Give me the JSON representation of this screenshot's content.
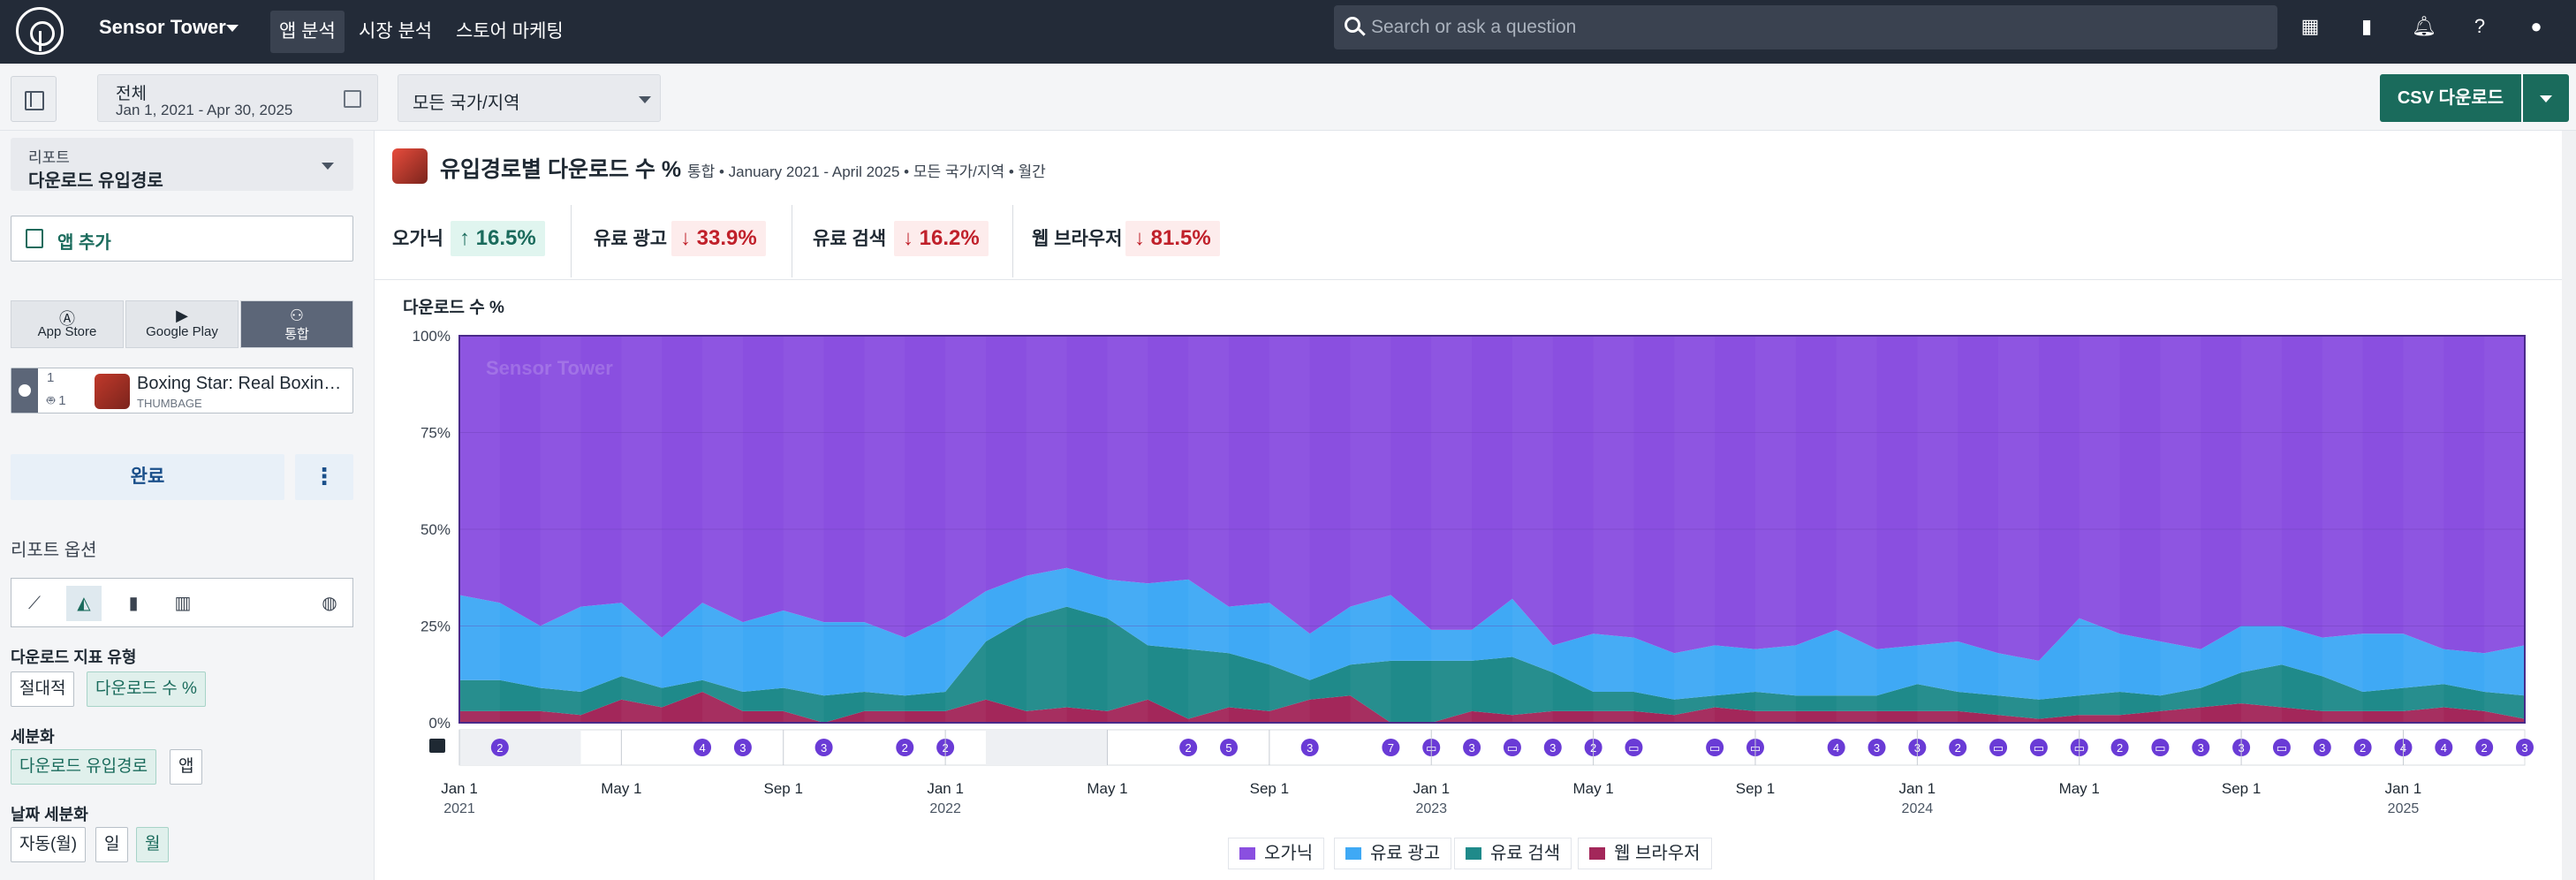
{
  "topbar": {
    "brand": "Sensor Tower",
    "nav": [
      "앱 분석",
      "시장 분석",
      "스토어 마케팅"
    ],
    "search_placeholder": "Search or ask a question"
  },
  "subbar": {
    "date_label": "전체",
    "date_range": "Jan 1, 2021 - Apr 30, 2025",
    "region": "모든 국가/지역",
    "csv_label": "CSV 다운로드"
  },
  "sidebar": {
    "report_label": "리포트",
    "report_value": "다운로드 유입경로",
    "add_app": "앱 추가",
    "platforms": [
      "App Store",
      "Google Play",
      "통합"
    ],
    "app": {
      "name": "Boxing Star: Real Boxing Fight",
      "publisher": "THUMBAGE",
      "ios_count": "1",
      "android_count": "1"
    },
    "done_label": "완료",
    "options_title": "리포트 옵션",
    "metric_type_label": "다운로드 지표 유형",
    "metric_types": [
      "절대적",
      "다운로드 수 %"
    ],
    "segment_label": "세분화",
    "segments": [
      "다운로드 유입경로",
      "앱"
    ],
    "date_segment_label": "날짜 세분화",
    "date_segments": [
      "자동(월)",
      "일",
      "월"
    ]
  },
  "main": {
    "title": "유입경로별 다운로드 수 %",
    "subtitle": "통합 • January 2021 - April 2025 • 모든 국가/지역 • 월간",
    "kpis": [
      {
        "name": "오가닉",
        "value": "↑ 16.5%",
        "dir": "up"
      },
      {
        "name": "유료 광고",
        "value": "↓ 33.9%",
        "dir": "down"
      },
      {
        "name": "유료 검색",
        "value": "↓ 16.2%",
        "dir": "down"
      },
      {
        "name": "웹 브라우저",
        "value": "↓ 81.5%",
        "dir": "down"
      }
    ]
  },
  "chart_data": {
    "type": "area",
    "stacked": true,
    "ylabel": "다운로드 수 %",
    "watermark": "Sensor Tower",
    "ylim": [
      0,
      100
    ],
    "yticks": [
      "0%",
      "25%",
      "50%",
      "75%",
      "100%"
    ],
    "x_ticks": [
      {
        "label": "Jan 1",
        "year": "2021",
        "i": 0
      },
      {
        "label": "May 1",
        "year": "",
        "i": 4
      },
      {
        "label": "Sep 1",
        "year": "",
        "i": 8
      },
      {
        "label": "Jan 1",
        "year": "2022",
        "i": 12
      },
      {
        "label": "May 1",
        "year": "",
        "i": 16
      },
      {
        "label": "Sep 1",
        "year": "",
        "i": 20
      },
      {
        "label": "Jan 1",
        "year": "2023",
        "i": 24
      },
      {
        "label": "May 1",
        "year": "",
        "i": 28
      },
      {
        "label": "Sep 1",
        "year": "",
        "i": 32
      },
      {
        "label": "Jan 1",
        "year": "2024",
        "i": 36
      },
      {
        "label": "May 1",
        "year": "",
        "i": 40
      },
      {
        "label": "Sep 1",
        "year": "",
        "i": 44
      },
      {
        "label": "Jan 1",
        "year": "2025",
        "i": 48
      }
    ],
    "x": [
      "2021-01",
      "2021-02",
      "2021-03",
      "2021-04",
      "2021-05",
      "2021-06",
      "2021-07",
      "2021-08",
      "2021-09",
      "2021-10",
      "2021-11",
      "2021-12",
      "2022-01",
      "2022-02",
      "2022-03",
      "2022-04",
      "2022-05",
      "2022-06",
      "2022-07",
      "2022-08",
      "2022-09",
      "2022-10",
      "2022-11",
      "2022-12",
      "2023-01",
      "2023-02",
      "2023-03",
      "2023-04",
      "2023-05",
      "2023-06",
      "2023-07",
      "2023-08",
      "2023-09",
      "2023-10",
      "2023-11",
      "2023-12",
      "2024-01",
      "2024-02",
      "2024-03",
      "2024-04",
      "2024-05",
      "2024-06",
      "2024-07",
      "2024-08",
      "2024-09",
      "2024-10",
      "2024-11",
      "2024-12",
      "2025-01",
      "2025-02",
      "2025-03",
      "2025-04"
    ],
    "series": [
      {
        "name": "웹 브라우저",
        "color": "#a3275a",
        "values": [
          3,
          3,
          3,
          2,
          6,
          4,
          8,
          3,
          3,
          0,
          3,
          3,
          3,
          6,
          3,
          4,
          3,
          6,
          1,
          4,
          3,
          6,
          7,
          0,
          0,
          3,
          2,
          3,
          3,
          3,
          2,
          4,
          3,
          3,
          3,
          3,
          3,
          3,
          2,
          1,
          2,
          2,
          3,
          4,
          5,
          4,
          3,
          3,
          3,
          4,
          3,
          1
        ]
      },
      {
        "name": "유료 검색",
        "color": "#1f8a8a",
        "values": [
          8,
          8,
          6,
          6,
          6,
          5,
          3,
          5,
          6,
          7,
          5,
          4,
          5,
          15,
          24,
          26,
          24,
          14,
          18,
          14,
          12,
          5,
          8,
          16,
          16,
          13,
          15,
          10,
          5,
          5,
          4,
          3,
          5,
          4,
          4,
          4,
          7,
          5,
          5,
          5,
          5,
          6,
          4,
          5,
          8,
          11,
          9,
          5,
          6,
          6,
          5,
          6
        ]
      },
      {
        "name": "유료 광고",
        "color": "#3fa9f5",
        "values": [
          22,
          20,
          16,
          22,
          19,
          13,
          20,
          18,
          20,
          19,
          18,
          15,
          19,
          13,
          11,
          10,
          10,
          16,
          18,
          12,
          16,
          12,
          15,
          17,
          8,
          8,
          15,
          7,
          15,
          14,
          12,
          13,
          11,
          13,
          17,
          12,
          10,
          13,
          11,
          10,
          20,
          15,
          14,
          10,
          12,
          10,
          10,
          15,
          14,
          9,
          10,
          13
        ]
      },
      {
        "name": "오가닉",
        "color": "#8a4fe0",
        "values": [
          67,
          69,
          75,
          70,
          69,
          78,
          69,
          74,
          71,
          74,
          74,
          78,
          73,
          66,
          62,
          60,
          63,
          64,
          63,
          70,
          69,
          77,
          70,
          67,
          76,
          76,
          68,
          80,
          77,
          78,
          82,
          80,
          81,
          80,
          76,
          81,
          80,
          79,
          82,
          84,
          73,
          77,
          79,
          81,
          75,
          75,
          78,
          77,
          77,
          81,
          82,
          80
        ]
      }
    ],
    "legend": [
      "오가닉",
      "유료 광고",
      "유료 검색",
      "웹 브라우저"
    ],
    "legend_position": "bottom-center",
    "events": [
      {
        "i": 1,
        "label": "2"
      },
      {
        "i": 6,
        "label": "4"
      },
      {
        "i": 7,
        "label": "3"
      },
      {
        "i": 9,
        "label": "3"
      },
      {
        "i": 11,
        "label": "2"
      },
      {
        "i": 12,
        "label": "2"
      },
      {
        "i": 18,
        "label": "2"
      },
      {
        "i": 19,
        "label": "5"
      },
      {
        "i": 21,
        "label": "3"
      },
      {
        "i": 23,
        "label": "7"
      },
      {
        "i": 24,
        "label": "▭"
      },
      {
        "i": 25,
        "label": "3"
      },
      {
        "i": 26,
        "label": "▭"
      },
      {
        "i": 27,
        "label": "3"
      },
      {
        "i": 28,
        "label": "2"
      },
      {
        "i": 29,
        "label": "▭"
      },
      {
        "i": 31,
        "label": "▭"
      },
      {
        "i": 32,
        "label": "▭"
      },
      {
        "i": 34,
        "label": "4"
      },
      {
        "i": 35,
        "label": "3"
      },
      {
        "i": 36,
        "label": "3"
      },
      {
        "i": 37,
        "label": "2"
      },
      {
        "i": 38,
        "label": "▭"
      },
      {
        "i": 39,
        "label": "▭"
      },
      {
        "i": 40,
        "label": "▭"
      },
      {
        "i": 41,
        "label": "2"
      },
      {
        "i": 42,
        "label": "▭"
      },
      {
        "i": 43,
        "label": "3"
      },
      {
        "i": 44,
        "label": "3"
      },
      {
        "i": 45,
        "label": "▭"
      },
      {
        "i": 46,
        "label": "3"
      },
      {
        "i": 47,
        "label": "2"
      },
      {
        "i": 48,
        "label": "4"
      },
      {
        "i": 49,
        "label": "4"
      },
      {
        "i": 50,
        "label": "2"
      },
      {
        "i": 51,
        "label": "3"
      }
    ]
  }
}
